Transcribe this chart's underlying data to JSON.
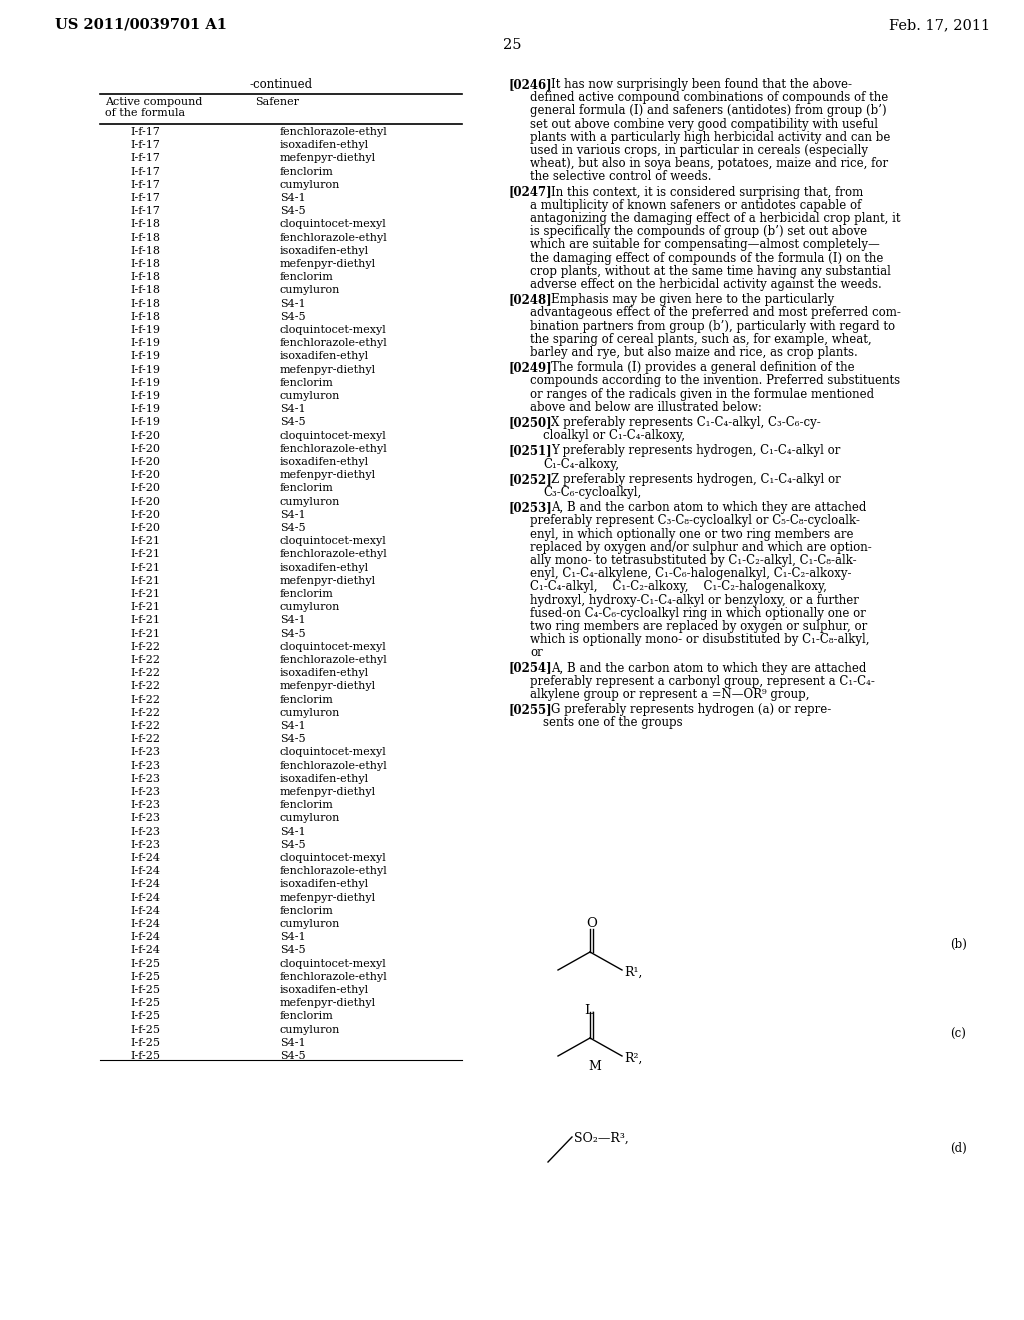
{
  "page_header_left": "US 2011/0039701 A1",
  "page_header_right": "Feb. 17, 2011",
  "page_number": "25",
  "table_title": "-continued",
  "col1_header_line1": "Active compound",
  "col1_header_line2": "of the formula",
  "col2_header": "Safener",
  "table_data": [
    [
      "I-f-17",
      "fenchlorazole-ethyl"
    ],
    [
      "I-f-17",
      "isoxadifen-ethyl"
    ],
    [
      "I-f-17",
      "mefenpyr-diethyl"
    ],
    [
      "I-f-17",
      "fenclorim"
    ],
    [
      "I-f-17",
      "cumyluron"
    ],
    [
      "I-f-17",
      "S4-1"
    ],
    [
      "I-f-17",
      "S4-5"
    ],
    [
      "I-f-18",
      "cloquintocet-mexyl"
    ],
    [
      "I-f-18",
      "fenchlorazole-ethyl"
    ],
    [
      "I-f-18",
      "isoxadifen-ethyl"
    ],
    [
      "I-f-18",
      "mefenpyr-diethyl"
    ],
    [
      "I-f-18",
      "fenclorim"
    ],
    [
      "I-f-18",
      "cumyluron"
    ],
    [
      "I-f-18",
      "S4-1"
    ],
    [
      "I-f-18",
      "S4-5"
    ],
    [
      "I-f-19",
      "cloquintocet-mexyl"
    ],
    [
      "I-f-19",
      "fenchlorazole-ethyl"
    ],
    [
      "I-f-19",
      "isoxadifen-ethyl"
    ],
    [
      "I-f-19",
      "mefenpyr-diethyl"
    ],
    [
      "I-f-19",
      "fenclorim"
    ],
    [
      "I-f-19",
      "cumyluron"
    ],
    [
      "I-f-19",
      "S4-1"
    ],
    [
      "I-f-19",
      "S4-5"
    ],
    [
      "I-f-20",
      "cloquintocet-mexyl"
    ],
    [
      "I-f-20",
      "fenchlorazole-ethyl"
    ],
    [
      "I-f-20",
      "isoxadifen-ethyl"
    ],
    [
      "I-f-20",
      "mefenpyr-diethyl"
    ],
    [
      "I-f-20",
      "fenclorim"
    ],
    [
      "I-f-20",
      "cumyluron"
    ],
    [
      "I-f-20",
      "S4-1"
    ],
    [
      "I-f-20",
      "S4-5"
    ],
    [
      "I-f-21",
      "cloquintocet-mexyl"
    ],
    [
      "I-f-21",
      "fenchlorazole-ethyl"
    ],
    [
      "I-f-21",
      "isoxadifen-ethyl"
    ],
    [
      "I-f-21",
      "mefenpyr-diethyl"
    ],
    [
      "I-f-21",
      "fenclorim"
    ],
    [
      "I-f-21",
      "cumyluron"
    ],
    [
      "I-f-21",
      "S4-1"
    ],
    [
      "I-f-21",
      "S4-5"
    ],
    [
      "I-f-22",
      "cloquintocet-mexyl"
    ],
    [
      "I-f-22",
      "fenchlorazole-ethyl"
    ],
    [
      "I-f-22",
      "isoxadifen-ethyl"
    ],
    [
      "I-f-22",
      "mefenpyr-diethyl"
    ],
    [
      "I-f-22",
      "fenclorim"
    ],
    [
      "I-f-22",
      "cumyluron"
    ],
    [
      "I-f-22",
      "S4-1"
    ],
    [
      "I-f-22",
      "S4-5"
    ],
    [
      "I-f-23",
      "cloquintocet-mexyl"
    ],
    [
      "I-f-23",
      "fenchlorazole-ethyl"
    ],
    [
      "I-f-23",
      "isoxadifen-ethyl"
    ],
    [
      "I-f-23",
      "mefenpyr-diethyl"
    ],
    [
      "I-f-23",
      "fenclorim"
    ],
    [
      "I-f-23",
      "cumyluron"
    ],
    [
      "I-f-23",
      "S4-1"
    ],
    [
      "I-f-23",
      "S4-5"
    ],
    [
      "I-f-24",
      "cloquintocet-mexyl"
    ],
    [
      "I-f-24",
      "fenchlorazole-ethyl"
    ],
    [
      "I-f-24",
      "isoxadifen-ethyl"
    ],
    [
      "I-f-24",
      "mefenpyr-diethyl"
    ],
    [
      "I-f-24",
      "fenclorim"
    ],
    [
      "I-f-24",
      "cumyluron"
    ],
    [
      "I-f-24",
      "S4-1"
    ],
    [
      "I-f-24",
      "S4-5"
    ],
    [
      "I-f-25",
      "cloquintocet-mexyl"
    ],
    [
      "I-f-25",
      "fenchlorazole-ethyl"
    ],
    [
      "I-f-25",
      "isoxadifen-ethyl"
    ],
    [
      "I-f-25",
      "mefenpyr-diethyl"
    ],
    [
      "I-f-25",
      "fenclorim"
    ],
    [
      "I-f-25",
      "cumyluron"
    ],
    [
      "I-f-25",
      "S4-1"
    ],
    [
      "I-f-25",
      "S4-5"
    ]
  ],
  "paragraphs": [
    {
      "tag": "[0246]",
      "lines": [
        "It has now surprisingly been found that the above-",
        "defined active compound combinations of compounds of the",
        "general formula (I) and safeners (antidotes) from group (b’)",
        "set out above combine very good compatibility with useful",
        "plants with a particularly high herbicidal activity and can be",
        "used in various crops, in particular in cereals (especially",
        "wheat), but also in soya beans, potatoes, maize and rice, for",
        "the selective control of weeds."
      ]
    },
    {
      "tag": "[0247]",
      "lines": [
        "In this context, it is considered surprising that, from",
        "a multiplicity of known safeners or antidotes capable of",
        "antagonizing the damaging effect of a herbicidal crop plant, it",
        "is specifically the compounds of group (b’) set out above",
        "which are suitable for compensating—almost completely—",
        "the damaging effect of compounds of the formula (I) on the",
        "crop plants, without at the same time having any substantial",
        "adverse effect on the herbicidal activity against the weeds."
      ]
    },
    {
      "tag": "[0248]",
      "lines": [
        "Emphasis may be given here to the particularly",
        "advantageous effect of the preferred and most preferred com-",
        "bination partners from group (b’), particularly with regard to",
        "the sparing of cereal plants, such as, for example, wheat,",
        "barley and rye, but also maize and rice, as crop plants."
      ]
    },
    {
      "tag": "[0249]",
      "lines": [
        "The formula (I) provides a general definition of the",
        "compounds according to the invention. Preferred substituents",
        "or ranges of the radicals given in the formulae mentioned",
        "above and below are illustrated below:"
      ]
    },
    {
      "tag": "[0250]",
      "lines": [
        "X preferably represents C₁-C₄-alkyl, C₃-C₆-cy-",
        "   cloalkyl or C₁-C₄-alkoxy,"
      ]
    },
    {
      "tag": "[0251]",
      "lines": [
        "Y preferably represents hydrogen, C₁-C₄-alkyl or",
        "   C₁-C₄-alkoxy,"
      ]
    },
    {
      "tag": "[0252]",
      "lines": [
        "Z preferably represents hydrogen, C₁-C₄-alkyl or",
        "   C₃-C₆-cycloalkyl,"
      ]
    },
    {
      "tag": "[0253]",
      "lines": [
        "A, B and the carbon atom to which they are attached",
        "preferably represent C₃-C₈-cycloalkyl or C₅-C₈-cycloalk-",
        "enyl, in which optionally one or two ring members are",
        "replaced by oxygen and/or sulphur and which are option-",
        "ally mono- to tetrasubstituted by C₁-C₂-alkyl, C₁-C₈-alk-",
        "enyl, C₁-C₄-alkylene, C₁-C₆-halogenalkyl, C₁-C₂-alkoxy-",
        "C₁-C₄-alkyl,    C₁-C₂-alkoxy,    C₁-C₂-halogenalkoxy,",
        "hydroxyl, hydroxy-C₁-C₄-alkyl or benzyloxy, or a further",
        "fused-on C₄-C₆-cycloalkyl ring in which optionally one or",
        "two ring members are replaced by oxygen or sulphur, or",
        "which is optionally mono- or disubstituted by C₁-C₈-alkyl,",
        "or"
      ]
    },
    {
      "tag": "[0254]",
      "lines": [
        "A, B and the carbon atom to which they are attached",
        "preferably represent a carbonyl group, represent a C₁-C₄-",
        "alkylene group or represent a =N—OR⁹ group,"
      ]
    },
    {
      "tag": "[0255]",
      "lines": [
        "G preferably represents hydrogen (a) or repre-",
        "   sents one of the groups"
      ]
    }
  ],
  "background_color": "#ffffff",
  "text_color": "#000000"
}
